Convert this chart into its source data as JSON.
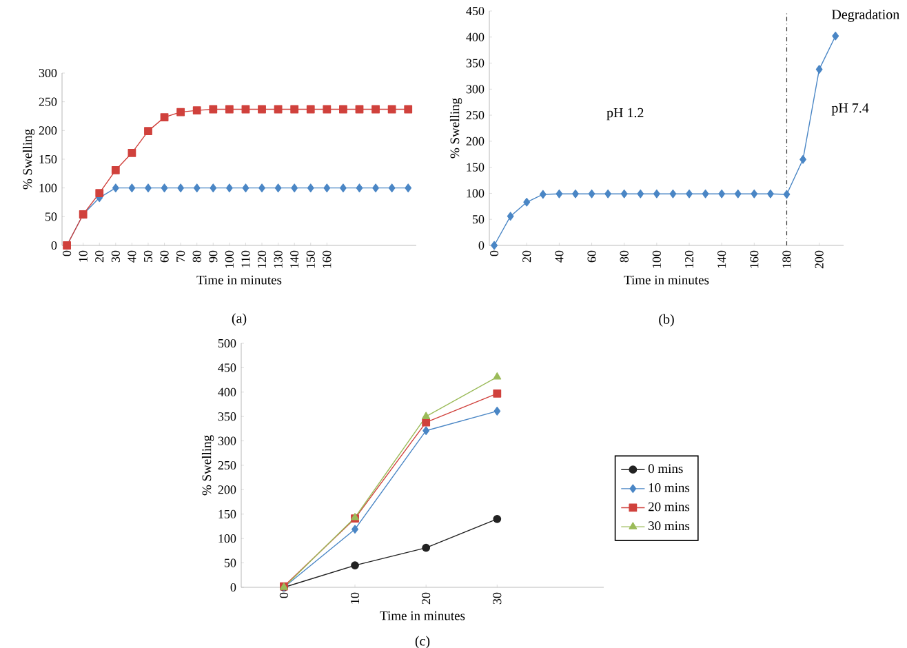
{
  "chart_data": [
    {
      "type": "line",
      "xlabel": "Time in minutes",
      "ylabel": "% Swelling",
      "annotations": [
        "(a)"
      ],
      "x": [
        0,
        10,
        20,
        30,
        40,
        50,
        60,
        70,
        80,
        90,
        100,
        110,
        120,
        130,
        140,
        150,
        160,
        170,
        180,
        190,
        200,
        210
      ],
      "xlim": [
        -3,
        215
      ],
      "xticks": [
        0,
        10,
        20,
        30,
        40,
        50,
        60,
        70,
        80,
        90,
        100,
        110,
        120,
        130,
        140,
        150,
        160
      ],
      "ylim": [
        0,
        300
      ],
      "yticks": [
        0,
        50,
        100,
        150,
        200,
        250,
        300
      ],
      "series": [
        {
          "color": "#4a86c5",
          "marker": "diamond",
          "values": [
            0,
            54,
            83,
            100,
            100,
            100,
            100,
            100,
            100,
            100,
            100,
            100,
            100,
            100,
            100,
            100,
            100,
            100,
            100,
            100,
            100,
            100
          ]
        },
        {
          "color": "#d0413c",
          "marker": "square",
          "values": [
            0,
            54,
            91,
            131,
            161,
            199,
            223,
            232,
            235,
            237,
            237,
            237,
            237,
            237,
            237,
            237,
            237,
            237,
            237,
            237,
            237,
            237
          ]
        }
      ]
    },
    {
      "type": "line",
      "xlabel": "Time in minutes",
      "ylabel": "% Swelling",
      "annotations": [
        "pH 1.2",
        "pH 7.4",
        "Degradation",
        "(b)"
      ],
      "x": [
        0,
        10,
        20,
        30,
        40,
        50,
        60,
        70,
        80,
        90,
        100,
        110,
        120,
        130,
        140,
        150,
        160,
        170,
        180,
        190,
        200,
        210
      ],
      "xlim": [
        -3,
        215
      ],
      "xticks": [
        0,
        20,
        40,
        60,
        80,
        100,
        120,
        140,
        160,
        180,
        200
      ],
      "ylim": [
        0,
        450
      ],
      "yticks": [
        0,
        50,
        100,
        150,
        200,
        250,
        300,
        350,
        400,
        450
      ],
      "ref_lines": [
        {
          "axis": "x",
          "value": 180,
          "line_style": "dashdot",
          "color": "#333333"
        }
      ],
      "series": [
        {
          "color": "#4a86c5",
          "marker": "diamond",
          "values": [
            0,
            56,
            83,
            98,
            99,
            99,
            99,
            99,
            99,
            99,
            99,
            99,
            99,
            99,
            99,
            99,
            99,
            99,
            98,
            165,
            338,
            402
          ]
        }
      ]
    },
    {
      "type": "line",
      "xlabel": "Time in minutes",
      "ylabel": "% Swelling",
      "annotations": [
        "(c)"
      ],
      "legend": "right",
      "x": [
        0,
        10,
        20,
        30
      ],
      "xlim": [
        -6,
        45
      ],
      "xticks": [
        0,
        10,
        20,
        30
      ],
      "ylim": [
        0,
        500
      ],
      "yticks": [
        0,
        50,
        100,
        150,
        200,
        250,
        300,
        350,
        400,
        450,
        500
      ],
      "series": [
        {
          "name": "0 mins",
          "color": "#222222",
          "marker": "circle",
          "values": [
            0,
            45,
            81,
            140
          ]
        },
        {
          "name": "10 mins",
          "color": "#4a86c5",
          "marker": "diamond",
          "values": [
            0,
            119,
            321,
            361
          ]
        },
        {
          "name": "20 mins",
          "color": "#d0413c",
          "marker": "square",
          "values": [
            2,
            141,
            338,
            397
          ]
        },
        {
          "name": "30 mins",
          "color": "#9bbb59",
          "marker": "triangle",
          "values": [
            0,
            143,
            350,
            431
          ]
        }
      ]
    }
  ]
}
